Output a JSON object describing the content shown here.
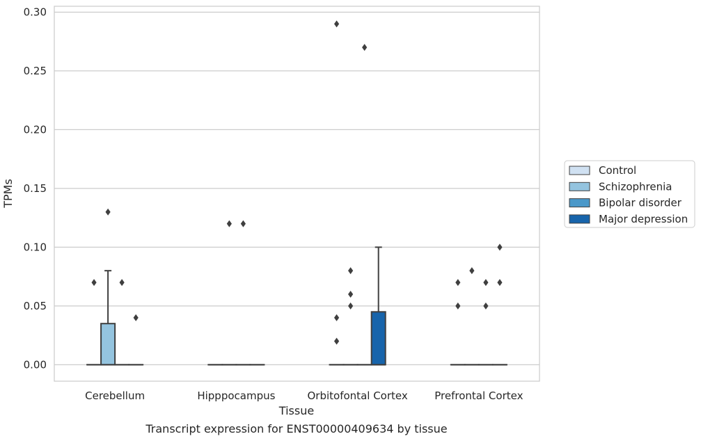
{
  "chart_data": {
    "type": "box",
    "title": "Transcript expression for ENST00000409634 by tissue",
    "xlabel": "Tissue",
    "ylabel": "TPMs",
    "categories": [
      "Cerebellum",
      "Hipppocampus",
      "Orbitofontal Cortex",
      "Prefrontal Cortex"
    ],
    "ylim": [
      -0.014,
      0.305
    ],
    "yticks": [
      0.0,
      0.05,
      0.1,
      0.15,
      0.2,
      0.25,
      0.3
    ],
    "ytick_labels": [
      "0.00",
      "0.05",
      "0.10",
      "0.15",
      "0.20",
      "0.25",
      "0.30"
    ],
    "grid": "horizontal",
    "legend_position": "right",
    "series": [
      {
        "name": "Control",
        "color": "#d0e1f2",
        "boxes": [
          {
            "category": "Cerebellum",
            "q1": 0,
            "median": 0,
            "q3": 0,
            "whisker_low": 0,
            "whisker_high": 0,
            "outliers": [
              0.07
            ]
          },
          {
            "category": "Hipppocampus",
            "q1": 0,
            "median": 0,
            "q3": 0,
            "whisker_low": 0,
            "whisker_high": 0,
            "outliers": []
          },
          {
            "category": "Orbitofontal Cortex",
            "q1": 0,
            "median": 0,
            "q3": 0,
            "whisker_low": 0,
            "whisker_high": 0,
            "outliers": [
              0.02,
              0.04,
              0.29
            ]
          },
          {
            "category": "Prefrontal Cortex",
            "q1": 0,
            "median": 0,
            "q3": 0,
            "whisker_low": 0,
            "whisker_high": 0,
            "outliers": [
              0.05,
              0.07
            ]
          }
        ]
      },
      {
        "name": "Schizophrenia",
        "color": "#94c4df",
        "boxes": [
          {
            "category": "Cerebellum",
            "q1": 0,
            "median": 0,
            "q3": 0.035,
            "whisker_low": 0,
            "whisker_high": 0.08,
            "outliers": [
              0.13
            ]
          },
          {
            "category": "Hipppocampus",
            "q1": 0,
            "median": 0,
            "q3": 0,
            "whisker_low": 0,
            "whisker_high": 0,
            "outliers": [
              0.12
            ]
          },
          {
            "category": "Orbitofontal Cortex",
            "q1": 0,
            "median": 0,
            "q3": 0,
            "whisker_low": 0,
            "whisker_high": 0,
            "outliers": [
              0.05,
              0.06,
              0.08
            ]
          },
          {
            "category": "Prefrontal Cortex",
            "q1": 0,
            "median": 0,
            "q3": 0,
            "whisker_low": 0,
            "whisker_high": 0,
            "outliers": [
              0.08
            ]
          }
        ]
      },
      {
        "name": "Bipolar disorder",
        "color": "#4a98c9",
        "boxes": [
          {
            "category": "Cerebellum",
            "q1": 0,
            "median": 0,
            "q3": 0,
            "whisker_low": 0,
            "whisker_high": 0,
            "outliers": [
              0.07
            ]
          },
          {
            "category": "Hipppocampus",
            "q1": 0,
            "median": 0,
            "q3": 0,
            "whisker_low": 0,
            "whisker_high": 0,
            "outliers": [
              0.12
            ]
          },
          {
            "category": "Orbitofontal Cortex",
            "q1": 0,
            "median": 0,
            "q3": 0,
            "whisker_low": 0,
            "whisker_high": 0,
            "outliers": [
              0.27
            ]
          },
          {
            "category": "Prefrontal Cortex",
            "q1": 0,
            "median": 0,
            "q3": 0,
            "whisker_low": 0,
            "whisker_high": 0,
            "outliers": [
              0.05,
              0.07
            ]
          }
        ]
      },
      {
        "name": "Major depression",
        "color": "#1764ab",
        "boxes": [
          {
            "category": "Cerebellum",
            "q1": 0,
            "median": 0,
            "q3": 0,
            "whisker_low": 0,
            "whisker_high": 0,
            "outliers": [
              0.04
            ]
          },
          {
            "category": "Hipppocampus",
            "q1": 0,
            "median": 0,
            "q3": 0,
            "whisker_low": 0,
            "whisker_high": 0,
            "outliers": []
          },
          {
            "category": "Orbitofontal Cortex",
            "q1": 0,
            "median": 0,
            "q3": 0.045,
            "whisker_low": 0,
            "whisker_high": 0.1,
            "outliers": []
          },
          {
            "category": "Prefrontal Cortex",
            "q1": 0,
            "median": 0,
            "q3": 0,
            "whisker_low": 0,
            "whisker_high": 0,
            "outliers": [
              0.07,
              0.1
            ]
          }
        ]
      }
    ]
  }
}
